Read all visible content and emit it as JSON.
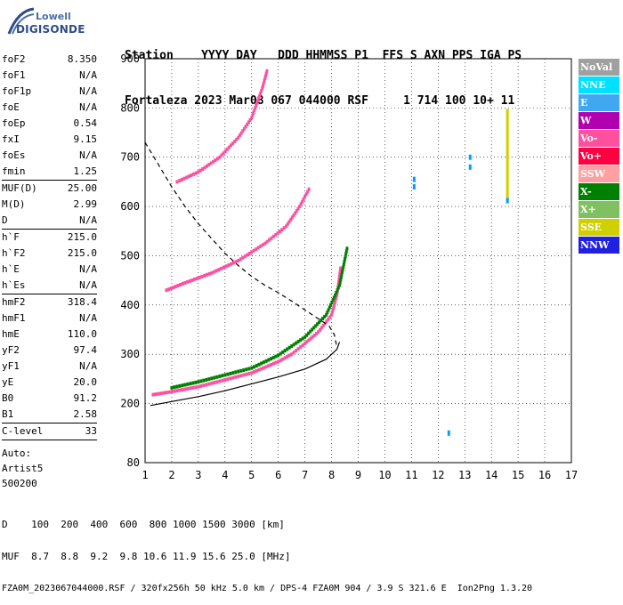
{
  "logo": {
    "line1": "Lowell",
    "line2": "DIGISONDE"
  },
  "header": {
    "row1": "Station    YYYY DAY   DDD HHMMSS P1  FFS S AXN PPS IGA PS",
    "row2": "Fortaleza 2023 Mar08 067 044000 RSF     1 714 100 10+ 11"
  },
  "params": [
    {
      "k": "foF2",
      "v": "8.350"
    },
    {
      "k": "foF1",
      "v": "N/A"
    },
    {
      "k": "foF1p",
      "v": "N/A"
    },
    {
      "k": "foE",
      "v": "N/A"
    },
    {
      "k": "foEp",
      "v": "0.54"
    },
    {
      "k": "fxI",
      "v": "9.15"
    },
    {
      "k": "foEs",
      "v": "N/A"
    },
    {
      "k": "fmin",
      "v": "1.25",
      "sep": true
    },
    {
      "k": "MUF(D)",
      "v": "25.00"
    },
    {
      "k": "M(D)",
      "v": "2.99"
    },
    {
      "k": "D",
      "v": "N/A",
      "sep": true
    },
    {
      "k": "h`F",
      "v": "215.0"
    },
    {
      "k": "h`F2",
      "v": "215.0"
    },
    {
      "k": "h`E",
      "v": "N/A"
    },
    {
      "k": "h`Es",
      "v": "N/A",
      "sep": true
    },
    {
      "k": "hmF2",
      "v": "318.4"
    },
    {
      "k": "hmF1",
      "v": "N/A"
    },
    {
      "k": "hmE",
      "v": "110.0"
    },
    {
      "k": "yF2",
      "v": "97.4"
    },
    {
      "k": "yF1",
      "v": "N/A"
    },
    {
      "k": "yE",
      "v": "20.0"
    },
    {
      "k": "B0",
      "v": "91.2"
    },
    {
      "k": "B1",
      "v": "2.58",
      "sep": true
    },
    {
      "k": "C-level",
      "v": "33",
      "sep": true
    }
  ],
  "autoscaling": [
    "Auto:",
    "Artist5",
    "500200"
  ],
  "legend": [
    {
      "label": "NoVal",
      "color": "#a0a0a0"
    },
    {
      "label": "NNE",
      "color": "#00e0ff"
    },
    {
      "label": "E",
      "color": "#40a8f0"
    },
    {
      "label": "W",
      "color": "#b000b0"
    },
    {
      "label": "Vo-",
      "color": "#ff50a0"
    },
    {
      "label": "Vo+",
      "color": "#ff0040"
    },
    {
      "label": "SSW",
      "color": "#ffa0a0"
    },
    {
      "label": "X-",
      "color": "#008000"
    },
    {
      "label": "X+",
      "color": "#80c060"
    },
    {
      "label": "SSE",
      "color": "#d0d000"
    },
    {
      "label": "NNW",
      "color": "#2020e0"
    }
  ],
  "footer": {
    "d_row": "D    100  200  400  600  800 1000 1500 3000 [km]",
    "muf_row": "MUF  8.7  8.8  9.2  9.8 10.6 11.9 15.6 25.0 [MHz]",
    "ids": "FZA0M_2023067044000.RSF / 320fx256h 50 kHz 5.0 km / DPS-4 FZA0M 904 / 3.9 S 321.6 E  Ion2Png 1.3.20"
  },
  "chart_data": {
    "type": "scatter",
    "xlim": [
      1,
      17
    ],
    "ylim": [
      80,
      900
    ],
    "x_ticks": [
      1,
      2,
      3,
      4,
      5,
      6,
      7,
      8,
      9,
      10,
      11,
      12,
      13,
      14,
      15,
      16,
      17
    ],
    "y_ticks": [
      80,
      200,
      300,
      400,
      500,
      600,
      700,
      800,
      900
    ],
    "grid": true,
    "traces": [
      {
        "name": "F2 O-trace",
        "color": "#ff50a0",
        "points": [
          [
            1.3,
            218
          ],
          [
            2,
            224
          ],
          [
            3,
            234
          ],
          [
            4,
            248
          ],
          [
            5,
            262
          ],
          [
            6,
            285
          ],
          [
            6.5,
            300
          ],
          [
            7,
            322
          ],
          [
            7.5,
            345
          ],
          [
            8,
            380
          ],
          [
            8.2,
            420
          ],
          [
            8.35,
            480
          ]
        ]
      },
      {
        "name": "F2 X-trace",
        "color": "#008000",
        "points": [
          [
            2,
            232
          ],
          [
            3,
            244
          ],
          [
            4,
            258
          ],
          [
            5,
            272
          ],
          [
            6,
            298
          ],
          [
            7,
            335
          ],
          [
            7.8,
            380
          ],
          [
            8.3,
            440
          ],
          [
            8.6,
            520
          ]
        ]
      },
      {
        "name": "F2 O-trace 2nd hop",
        "color": "#ff50a0",
        "points": [
          [
            1.8,
            430
          ],
          [
            2.5,
            445
          ],
          [
            3.5,
            465
          ],
          [
            4.5,
            490
          ],
          [
            5.5,
            525
          ],
          [
            6.3,
            560
          ],
          [
            6.8,
            600
          ],
          [
            7.2,
            640
          ]
        ]
      },
      {
        "name": "F2 O-trace 3rd hop",
        "color": "#ff50a0",
        "points": [
          [
            2.2,
            650
          ],
          [
            3,
            670
          ],
          [
            3.8,
            700
          ],
          [
            4.5,
            740
          ],
          [
            5,
            780
          ],
          [
            5.4,
            840
          ],
          [
            5.6,
            880
          ]
        ]
      },
      {
        "name": "SSE vertical",
        "color": "#d0d000",
        "points": [
          [
            14.6,
            610
          ],
          [
            14.6,
            800
          ]
        ]
      }
    ],
    "lines": [
      {
        "name": "profile solid",
        "style": "solid",
        "points": [
          [
            1.2,
            196
          ],
          [
            2,
            204
          ],
          [
            3,
            214
          ],
          [
            4,
            226
          ],
          [
            5,
            240
          ],
          [
            6,
            254
          ],
          [
            7,
            270
          ],
          [
            7.8,
            290
          ],
          [
            8.2,
            310
          ],
          [
            8.3,
            325
          ]
        ]
      },
      {
        "name": "profile dashed",
        "style": "dashed",
        "points": [
          [
            1,
            730
          ],
          [
            1.5,
            685
          ],
          [
            2,
            640
          ],
          [
            2.5,
            600
          ],
          [
            3,
            565
          ],
          [
            3.5,
            535
          ],
          [
            4,
            505
          ],
          [
            4.5,
            480
          ],
          [
            5,
            458
          ],
          [
            5.5,
            440
          ],
          [
            6,
            425
          ],
          [
            6.5,
            408
          ],
          [
            7,
            390
          ],
          [
            7.5,
            372
          ],
          [
            7.9,
            358
          ],
          [
            8.1,
            340
          ],
          [
            8.2,
            315
          ]
        ]
      }
    ],
    "isolated_points": [
      [
        11.1,
        655
      ],
      [
        11.1,
        640
      ],
      [
        13.2,
        700
      ],
      [
        13.2,
        680
      ],
      [
        12.4,
        140
      ],
      [
        14.6,
        612
      ]
    ]
  }
}
